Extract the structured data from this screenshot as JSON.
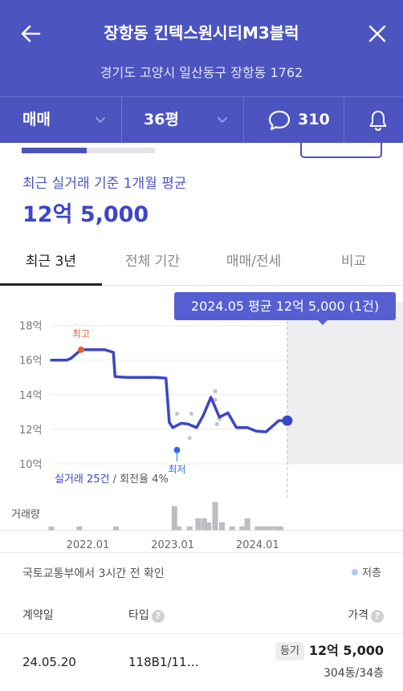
{
  "header": {
    "title": "장항동 킨텍스원시티M3블럭",
    "address": "경기도 고양시 일산동구 장항동 1762",
    "filters": {
      "trade_type": "매매",
      "area": "36평",
      "comment_count": "310"
    }
  },
  "summary": {
    "progress": 0.5,
    "avg_label": "최근 실거래 기준 1개월 평균",
    "avg_price": "12억 5,000"
  },
  "tabs": [
    {
      "label": "최근 3년",
      "active": true
    },
    {
      "label": "전체 기간",
      "active": false
    },
    {
      "label": "매매/전세",
      "active": false
    },
    {
      "label": "비교",
      "active": false
    }
  ],
  "chart_data": {
    "type": "line",
    "y_tick_labels": [
      "18억",
      "16억",
      "14억",
      "12억",
      "10억"
    ],
    "y_ticks": [
      18,
      16,
      14,
      12,
      10
    ],
    "ylim": [
      10,
      18.4
    ],
    "x_tick_labels": [
      "2022.01",
      "2023.01",
      "2024.01"
    ],
    "x_ticks": [
      2022.0,
      2023.0,
      2024.0
    ],
    "xlim": [
      2021.57,
      2024.9
    ],
    "series": [
      {
        "x": [
          2021.57,
          2021.75,
          2021.8,
          2021.92,
          2022.2,
          2022.3,
          2022.32,
          2022.45,
          2022.8,
          2022.92,
          2022.96,
          2023.0,
          2023.1,
          2023.18,
          2023.28,
          2023.36,
          2023.45,
          2023.55,
          2023.65,
          2023.75,
          2023.88,
          2023.98,
          2024.1,
          2024.25,
          2024.35
        ],
        "values": [
          16.0,
          16.0,
          16.1,
          16.6,
          16.6,
          16.45,
          15.05,
          15.0,
          15.0,
          14.95,
          12.4,
          12.1,
          12.35,
          12.3,
          12.1,
          12.8,
          13.85,
          12.7,
          12.95,
          12.1,
          12.1,
          11.9,
          11.85,
          12.5,
          12.5
        ]
      }
    ],
    "scatter_points": [
      {
        "x": 2023.05,
        "y": 12.9
      },
      {
        "x": 2023.2,
        "y": 11.5
      },
      {
        "x": 2023.22,
        "y": 12.9
      },
      {
        "x": 2023.5,
        "y": 13.7
      },
      {
        "x": 2023.52,
        "y": 12.3
      },
      {
        "x": 2023.5,
        "y": 14.2
      },
      {
        "x": 2023.55,
        "y": 12.6
      }
    ],
    "max_label": "최고",
    "max_point": {
      "x": 2021.92,
      "y": 16.6
    },
    "min_label": "최저",
    "min_point": {
      "x": 2023.05,
      "y": 10.8
    },
    "current_point": {
      "x": 2024.35,
      "y": 12.5
    },
    "volume_label": "거래량",
    "volume": {
      "x": [
        2021.57,
        2021.9,
        2022.33,
        2023.02,
        2023.07,
        2023.2,
        2023.3,
        2023.37,
        2023.42,
        2023.5,
        2023.58,
        2023.7,
        2023.82,
        2023.88,
        2024.0,
        2024.05,
        2024.1,
        2024.15,
        2024.22,
        2024.27
      ],
      "values": [
        1,
        1,
        1,
        6,
        1,
        1,
        3,
        3,
        2,
        7,
        2,
        1,
        1,
        3,
        1,
        1,
        1,
        1,
        1,
        1
      ]
    },
    "tooltip": "2024.05 평균 12억 5,000 (1건)",
    "stats_trades": "실거래 25건",
    "stats_turnover": " / 회전율 4%"
  },
  "source_note": "국토교통부에서 3시간 전 확인",
  "legend_registered": "저층",
  "table": {
    "headers": {
      "date": "계약일",
      "type": "타입",
      "price": "가격"
    },
    "rows": [
      {
        "date": "24.05.20",
        "type": "118B1/11…",
        "badge": "등기",
        "price": "12억 5,000",
        "unit": "304동/34층"
      }
    ]
  },
  "colors": {
    "brand": "#4c54bf",
    "line": "#3c46c8",
    "max_marker": "#e8602c",
    "min_marker": "#2f6ee8",
    "volume_bar": "#bdbdc3"
  }
}
